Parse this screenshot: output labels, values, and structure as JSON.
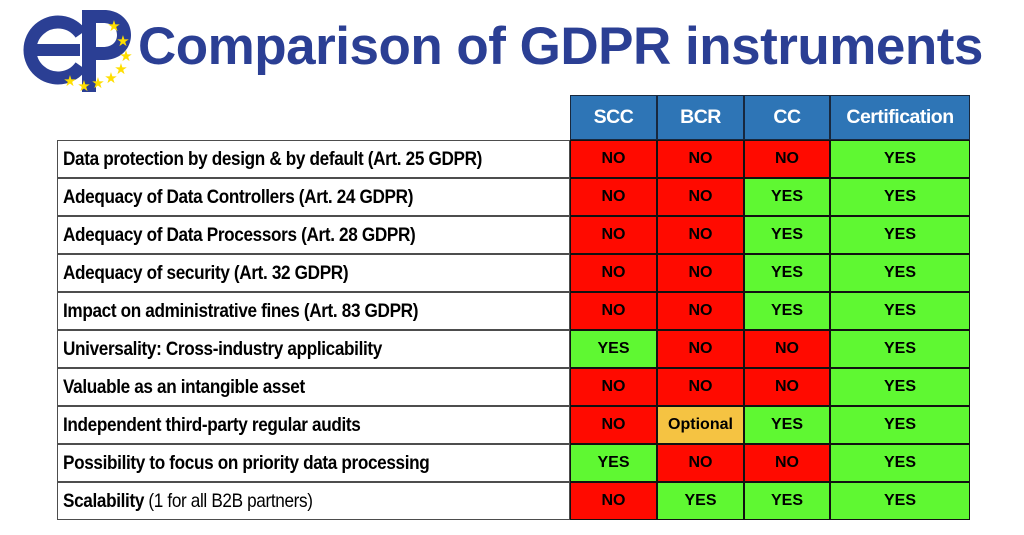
{
  "header": {
    "title": "Comparison of GDPR instruments",
    "logo": {
      "letters": "EP",
      "star_count": 8
    }
  },
  "theme": {
    "title_color": "#2B3F94",
    "logo_blue": "#2B3F94",
    "star_color": "#FFDE00",
    "header_bg": "#2E75B6",
    "header_text": "#FFFFFF",
    "yes_color": "#5FF832",
    "no_color": "#FF0A00",
    "optional_color": "#F5C342"
  },
  "table": {
    "columns": [
      "SCC",
      "BCR",
      "CC",
      "Certification"
    ],
    "rows": [
      {
        "label": "Data protection by design & by default (Art. 25 GDPR)",
        "note": "",
        "values": [
          "NO",
          "NO",
          "NO",
          "YES"
        ]
      },
      {
        "label": "Adequacy of Data Controllers (Art. 24 GDPR)",
        "note": "",
        "values": [
          "NO",
          "NO",
          "YES",
          "YES"
        ]
      },
      {
        "label": "Adequacy of Data Processors (Art. 28 GDPR)",
        "note": "",
        "values": [
          "NO",
          "NO",
          "YES",
          "YES"
        ]
      },
      {
        "label": "Adequacy of security (Art. 32 GDPR)",
        "note": "",
        "values": [
          "NO",
          "NO",
          "YES",
          "YES"
        ]
      },
      {
        "label": "Impact on administrative fines (Art. 83 GDPR)",
        "note": "",
        "values": [
          "NO",
          "NO",
          "YES",
          "YES"
        ]
      },
      {
        "label": "Universality: Cross-industry applicability",
        "note": "",
        "values": [
          "YES",
          "NO",
          "NO",
          "YES"
        ]
      },
      {
        "label": "Valuable as an intangible asset",
        "note": "",
        "values": [
          "NO",
          "NO",
          "NO",
          "YES"
        ]
      },
      {
        "label": "Independent third-party regular audits",
        "note": "",
        "values": [
          "NO",
          "Optional",
          "YES",
          "YES"
        ]
      },
      {
        "label": "Possibility to focus on priority data processing",
        "note": "",
        "values": [
          "YES",
          "NO",
          "NO",
          "YES"
        ]
      },
      {
        "label": "Scalability",
        "note": " (1 for all B2B partners)",
        "values": [
          "NO",
          "YES",
          "YES",
          "YES"
        ]
      }
    ]
  }
}
